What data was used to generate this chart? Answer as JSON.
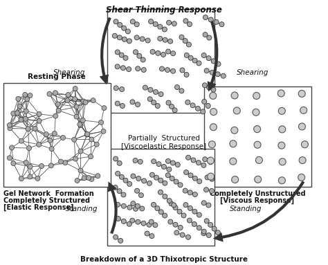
{
  "title_top": "Shear Thinning Response",
  "title_bottom": "Breakdown of a 3D Thixotropic Structure",
  "center_text_line1": "Partially  Structured",
  "center_text_line2": "[Viscoelastic Response]",
  "label_top_left": "Shearing",
  "label_top_right": "Shearing",
  "label_bottom_left": "Standing",
  "label_bottom_right": "Standing",
  "caption_left_top": "Resting Phase",
  "caption_left_line1": "Gel Network  Formation",
  "caption_left_line2": "Completely Structured",
  "caption_left_line3": "[Elastic Response]",
  "caption_right_line1": "Completely Unstructured",
  "caption_right_line2": "[Viscous Response]",
  "bg_color": "#ffffff",
  "box_edge_color": "#444444",
  "box_bg_color": "#ffffff",
  "arrow_color": "#333333",
  "text_color": "#111111"
}
